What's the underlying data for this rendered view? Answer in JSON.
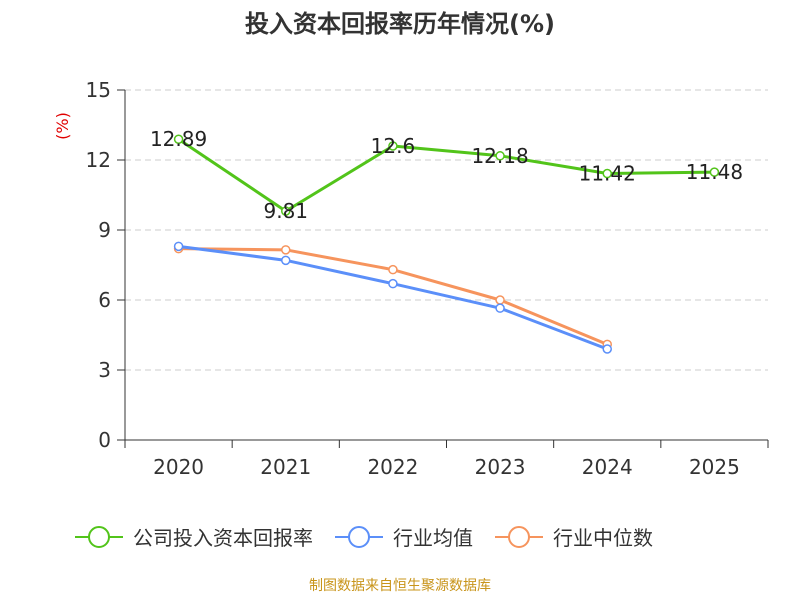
{
  "chart_data": {
    "type": "line",
    "title": "投入资本回报率历年情况(%)",
    "ylabel": "(%)",
    "xlabel": "",
    "ylim": [
      0,
      15
    ],
    "yticks": [
      0,
      3,
      6,
      9,
      12,
      15
    ],
    "categories": [
      "2020",
      "2021",
      "2022",
      "2023",
      "2024",
      "2025"
    ],
    "series": [
      {
        "name": "公司投入资本回报率",
        "color": "#52c41a",
        "values": [
          12.89,
          9.81,
          12.6,
          12.18,
          11.42,
          11.48
        ],
        "labels": [
          "12.89",
          "9.81",
          "12.6",
          "12.18",
          "11.42",
          "11.48"
        ]
      },
      {
        "name": "行业均值",
        "color": "#5b8ff9",
        "values": [
          8.3,
          7.7,
          6.7,
          5.65,
          3.9,
          null
        ]
      },
      {
        "name": "行业中位数",
        "color": "#f6945d",
        "values": [
          8.2,
          8.15,
          7.3,
          6.0,
          4.1,
          null
        ]
      }
    ],
    "legend_position": "bottom",
    "grid": true
  },
  "source": "制图数据来自恒生聚源数据库"
}
